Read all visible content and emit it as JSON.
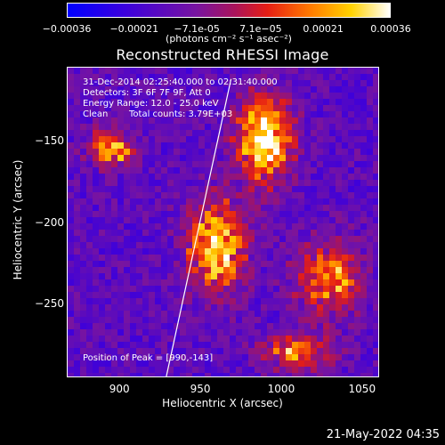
{
  "chart_data": {
    "type": "heatmap",
    "title": "Reconstructed RHESSI Image",
    "xlabel": "Heliocentric X (arcsec)",
    "ylabel": "Heliocentric Y (arcsec)",
    "xlim": [
      868,
      1060
    ],
    "ylim": [
      -295,
      -105
    ],
    "x_ticks": [
      "900",
      "950",
      "1000",
      "1050"
    ],
    "x_tick_values": [
      900,
      950,
      1000,
      1050
    ],
    "y_ticks": [
      "-150",
      "-200",
      "-250"
    ],
    "y_tick_values": [
      -150,
      -200,
      -250
    ],
    "colorbar": {
      "range": [
        -0.00036,
        0.00036
      ],
      "ticks": [
        "-0.00036",
        "-0.00021",
        "-7.1e-05",
        "7.1e-05",
        "0.00021",
        "0.00036"
      ],
      "tick_values": [
        -0.00036,
        -0.00021,
        -7.1e-05,
        7.1e-05,
        0.00021,
        0.00036
      ],
      "unit_label": "(photons cm⁻² s⁻¹ asec⁻²)",
      "colormap": "blue-purple-red-orange-yellow-white"
    },
    "annotations": {
      "time_range": "31-Dec-2014 02:25:40.000 to 02:31:40.000",
      "detectors": "Detectors: 3F 6F 7F 9F, Att 0",
      "energy": "Energy Range: 12.0 - 25.0 keV",
      "algorithm": "Clean",
      "total_counts": "Total counts: 3.79E+03",
      "peak": "Position of Peak = [990,-143]"
    },
    "peak_position": [
      990,
      -143
    ],
    "limb_line": [
      [
        929,
        -295
      ],
      [
        969,
        -112
      ]
    ],
    "emission_regions": [
      {
        "center": [
          895,
          -155
        ],
        "extent": [
          15,
          12
        ],
        "level": 0.6
      },
      {
        "center": [
          960,
          -215
        ],
        "extent": [
          20,
          30
        ],
        "level": 0.7
      },
      {
        "center": [
          990,
          -150
        ],
        "extent": [
          18,
          28
        ],
        "level": 0.8
      },
      {
        "center": [
          1030,
          -235
        ],
        "extent": [
          22,
          25
        ],
        "level": 0.5
      },
      {
        "center": [
          1010,
          -280
        ],
        "extent": [
          25,
          12
        ],
        "level": 0.45
      }
    ]
  },
  "timestamp": "21-May-2022 04:35"
}
